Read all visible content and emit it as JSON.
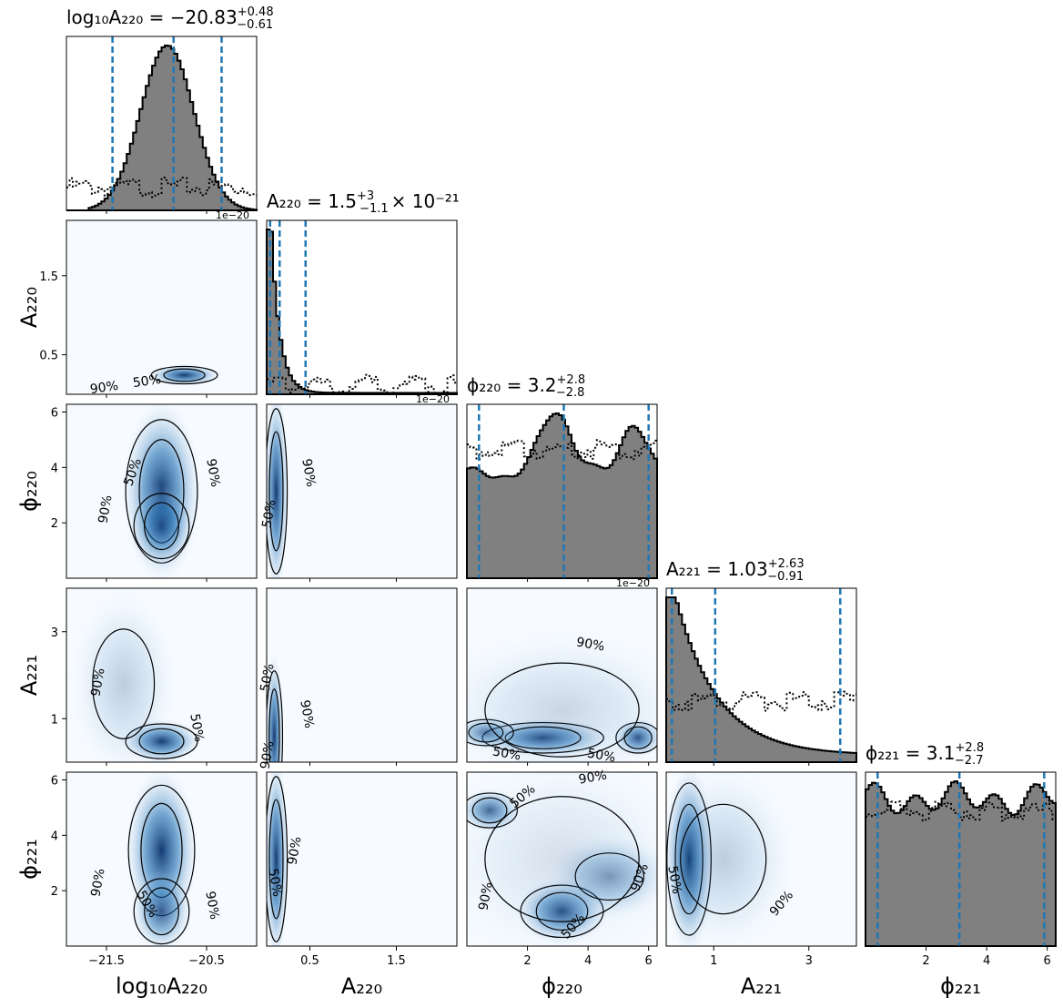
{
  "chart_data": {
    "type": "corner",
    "parameters": [
      {
        "key": "logA220",
        "axis_label": "log₁₀A₂₂₀",
        "title": "log₁₀A₂₂₀ = −20.83",
        "title_sup": "+0.48",
        "title_sub": "−0.61",
        "range": [
          -21.9,
          -20.0
        ],
        "ticks": [
          -21.5,
          -20.5
        ],
        "tick_labels": [
          "−21.5",
          "−20.5"
        ],
        "quantiles": [
          -21.44,
          -20.83,
          -20.35
        ],
        "offset_label": "1e−20"
      },
      {
        "key": "A220",
        "axis_label": "A₂₂₀",
        "title": "A₂₂₀ = 1.5",
        "title_sup": "+3",
        "title_sub": "−1.1",
        "title_suffix": "× 10⁻²¹",
        "range": [
          0,
          2.2
        ],
        "ticks": [
          0.5,
          1.5
        ],
        "tick_labels": [
          "0.5",
          "1.5"
        ],
        "quantiles": [
          0.04,
          0.15,
          0.45
        ],
        "offset_label": "1e−20"
      },
      {
        "key": "phi220",
        "axis_label": "ϕ₂₂₀",
        "title": "ϕ₂₂₀ = 3.2",
        "title_sup": "+2.8",
        "title_sub": "−2.8",
        "range": [
          0,
          6.28
        ],
        "ticks": [
          2,
          4,
          6
        ],
        "tick_labels": [
          "2",
          "4",
          "6"
        ],
        "quantiles": [
          0.4,
          3.2,
          6.0
        ],
        "offset_label": "1e−20"
      },
      {
        "key": "A221",
        "axis_label": "A₂₂₁",
        "title": "A₂₂₁ = 1.03",
        "title_sup": "+2.63",
        "title_sub": "−0.91",
        "range": [
          0,
          4.0
        ],
        "ticks": [
          1,
          3
        ],
        "tick_labels": [
          "1",
          "3"
        ],
        "quantiles": [
          0.12,
          1.03,
          3.66
        ],
        "offset_label": ""
      },
      {
        "key": "phi221",
        "axis_label": "ϕ₂₂₁",
        "title": "ϕ₂₂₁ = 3.1",
        "title_sup": "+2.8",
        "title_sub": "−2.7",
        "range": [
          0,
          6.28
        ],
        "ticks": [
          2,
          4,
          6
        ],
        "tick_labels": [
          "2",
          "4",
          "6"
        ],
        "quantiles": [
          0.4,
          3.1,
          5.9
        ],
        "offset_label": ""
      }
    ],
    "y_tick_labels": {
      "A220": [
        "1.5",
        "0.5"
      ],
      "phi220": [
        "6",
        "4",
        "2"
      ],
      "A221": [
        "3",
        "1"
      ],
      "phi221": [
        "6",
        "4",
        "2"
      ]
    },
    "contour_labels": [
      "50%",
      "90%"
    ],
    "prior_line": "dotted",
    "colors": {
      "hist_fill": "#808080",
      "hist_edge": "#000000",
      "quantile": "#1f77b4",
      "kde_dark": "#08306b",
      "kde_light": "#f7fbff"
    }
  }
}
